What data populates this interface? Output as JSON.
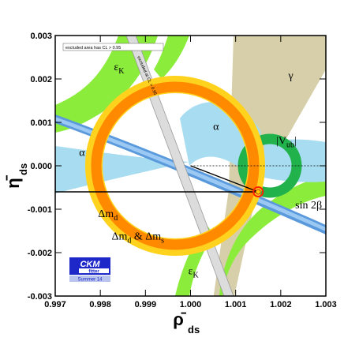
{
  "chart_data": {
    "type": "scatter",
    "xlabel": "ρ̄",
    "xlabel_sub": "ds",
    "ylabel": "η̄",
    "ylabel_sub": "ds",
    "xlim": [
      0.997,
      1.003
    ],
    "ylim": [
      -0.003,
      0.003
    ],
    "x_ticks": [
      {
        "v": 0.997,
        "t": "0.997"
      },
      {
        "v": 0.998,
        "t": "0.998"
      },
      {
        "v": 0.999,
        "t": "0.999"
      },
      {
        "v": 1.0,
        "t": "1.000"
      },
      {
        "v": 1.001,
        "t": "1.001"
      },
      {
        "v": 1.002,
        "t": "1.002"
      },
      {
        "v": 1.003,
        "t": "1.003"
      }
    ],
    "y_ticks": [
      {
        "v": 0.003,
        "t": "0.003"
      },
      {
        "v": 0.002,
        "t": "0.002"
      },
      {
        "v": 0.001,
        "t": "0.001"
      },
      {
        "v": 0.0,
        "t": "0.000"
      },
      {
        "v": -0.001,
        "t": "-0.001"
      },
      {
        "v": -0.002,
        "t": "-0.002"
      },
      {
        "v": -0.003,
        "t": "-0.003"
      }
    ],
    "apex": {
      "x": 1.0015,
      "y": -0.0006
    },
    "triangle": [
      [
        1.0,
        0.0
      ],
      [
        1.0015,
        -0.0006
      ],
      [
        0.997,
        -0.0006
      ],
      [
        0.997,
        0.0
      ]
    ],
    "regions": [
      {
        "name": "εK",
        "label_main": "ε",
        "label_sub": "K",
        "color": "#8cec3c",
        "label_at": [
          0.9983,
          0.0022
        ]
      },
      {
        "name": "εK-lower",
        "label_main": "ε",
        "label_sub": "K",
        "color": "#8cec3c",
        "label_at": [
          0.99995,
          -0.0025
        ]
      },
      {
        "name": "γ",
        "label_main": "γ",
        "label_sub": "",
        "color": "#d2caa0",
        "label_at": [
          1.00217,
          0.002
        ]
      },
      {
        "name": "α",
        "label_main": "α",
        "label_sub": "",
        "color": "#a8dcf0",
        "label_at": [
          1.0005,
          0.00083
        ]
      },
      {
        "name": "α-left",
        "label_main": "α",
        "label_sub": "",
        "color": "#a8dcf0",
        "label_at": [
          0.99753,
          0.00023
        ]
      },
      {
        "name": "|Vub|",
        "label_main": "|V",
        "label_sub": "ub",
        "label_tail": "|",
        "color": "#22b24c",
        "label_at": [
          1.0019,
          0.0005
        ]
      },
      {
        "name": "sin2β",
        "label_main": "sin 2β",
        "label_sub": "",
        "color": "#5a9adc",
        "label_at": [
          1.00232,
          -0.00098
        ]
      },
      {
        "name": "Δmd",
        "label_main": "Δm",
        "label_sub": "d",
        "color": "#ffd21e",
        "label_at": [
          0.99795,
          -0.00118
        ]
      },
      {
        "name": "Δmd&Δms",
        "label_main": "Δm",
        "label_sub": "d",
        "label_mid": " & Δm",
        "label_sub2": "s",
        "color": "#ff8a00",
        "label_at": [
          0.99825,
          -0.0017
        ]
      }
    ],
    "annotations": {
      "excluded_area_note": "excluded area has CL > 0.95",
      "excluded_at_cl": "excluded at CL > 0.95"
    },
    "logo": {
      "line1": "CKM",
      "line2": "fitter",
      "line3": "Summer 14"
    }
  }
}
